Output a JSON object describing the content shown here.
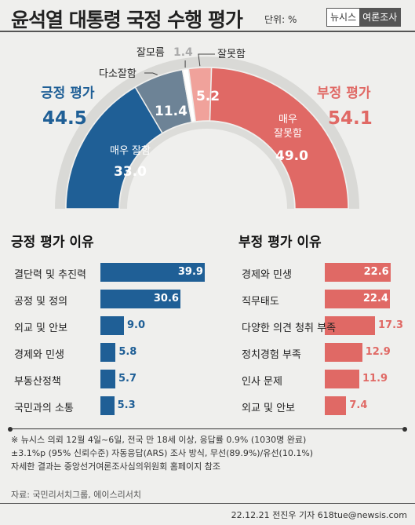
{
  "header": {
    "title": "윤석열 대통령 국정 수행 평가",
    "unit": "단위: %",
    "brand_left": "뉴시스",
    "brand_right": "여론조사"
  },
  "chart_data": [
    {
      "type": "pie",
      "layout": "half-donut",
      "slices": [
        {
          "label": "매우 잘함",
          "value": 33.0,
          "value_text": "33.0",
          "color": "#1f5f96"
        },
        {
          "label": "다소잘함",
          "value": 11.4,
          "value_text": "11.4",
          "color": "#6d8396"
        },
        {
          "label": "잘모름",
          "value": 1.4,
          "value_text": "1.4",
          "color": "#ffffff"
        },
        {
          "label": "잘못함",
          "value": 5.2,
          "value_text": "5.2",
          "color": "#f0a29b"
        },
        {
          "label": "매우 잘못함",
          "value": 49.0,
          "value_text": "49.0",
          "color": "#e06965"
        }
      ],
      "positive": {
        "label": "긍정 평가",
        "value": "44.5",
        "color": "#1f5f96"
      },
      "negative": {
        "label": "부정 평가",
        "value": "54.1",
        "color": "#e06965"
      }
    },
    {
      "type": "bar",
      "orientation": "horizontal",
      "title": "긍정 평가 이유",
      "color": "#1f5f96",
      "categories": [
        "결단력 및 추진력",
        "공정 및 정의",
        "외교 및 안보",
        "경제와 민생",
        "부동산정책",
        "국민과의 소통"
      ],
      "values": [
        39.9,
        30.6,
        9.0,
        5.8,
        5.7,
        5.3
      ],
      "value_texts": [
        "39.9",
        "30.6",
        "9.0",
        "5.8",
        "5.7",
        "5.3"
      ]
    },
    {
      "type": "bar",
      "orientation": "horizontal",
      "title": "부정 평가 이유",
      "color": "#e06965",
      "categories": [
        "경제와 민생",
        "직무태도",
        "다양한 의견 청취 부족",
        "정치경험 부족",
        "인사 문제",
        "외교 및 안보"
      ],
      "values": [
        22.6,
        22.4,
        17.3,
        12.9,
        11.9,
        7.4
      ],
      "value_texts": [
        "22.6",
        "22.4",
        "17.3",
        "12.9",
        "11.9",
        "7.4"
      ]
    }
  ],
  "notes": [
    "※ 뉴시스 의뢰 12월 4일~6일, 전국 만 18세 이상, 응답률 0.9% (1030명 완료)",
    "±3.1%p (95% 신뢰수준) 자동응답(ARS) 조사 방식, 무선(89.9%)/유선(10.1%)",
    "자세한 결과는 중앙선거여론조사심의위원회 홈페이지 참조"
  ],
  "source": "자료: 국민리서치그룹, 에이스리서치",
  "credit": "22.12.21 전진우 기자 618tue@newsis.com"
}
